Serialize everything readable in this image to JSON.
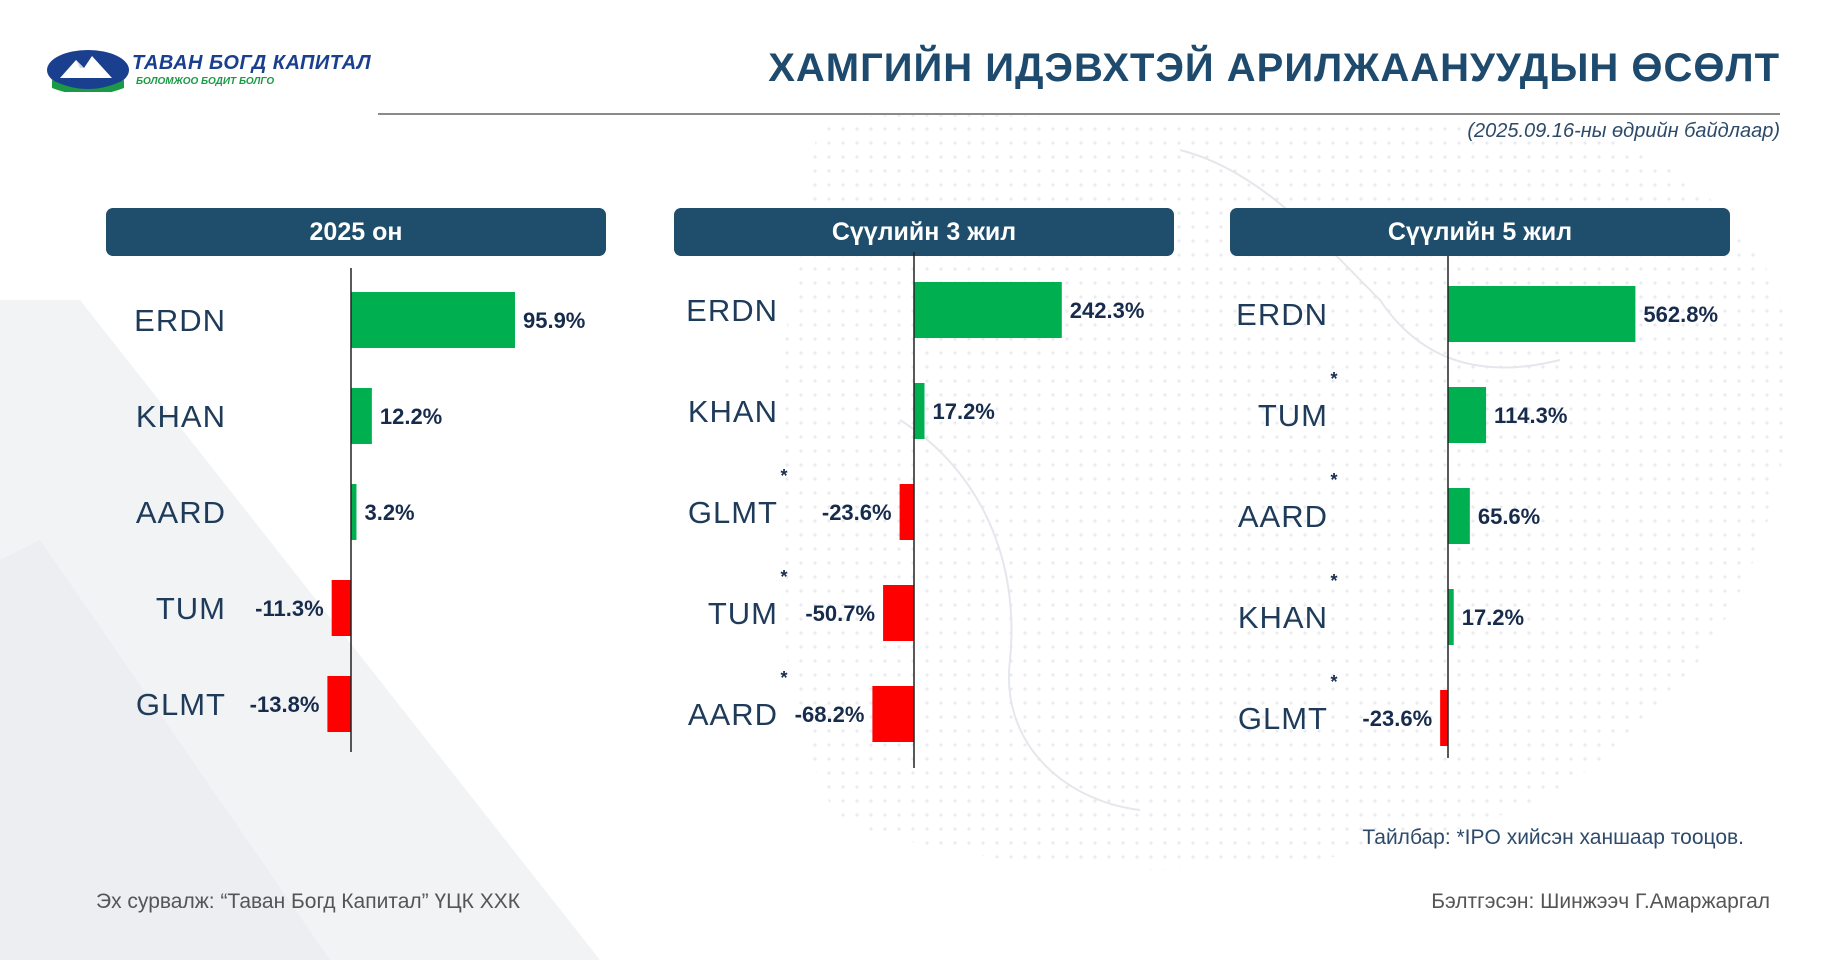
{
  "header": {
    "logo_name": "ТАВАН БОГД КАПИТАЛ",
    "logo_tagline": "БОЛОМЖОО БОДИТ БОЛГО",
    "title": "ХАМГИЙН ИДЭВХТЭЙ АРИЛЖААНУУДЫН ӨСӨЛТ",
    "subtitle": "(2025.09.16-ны өдрийн байдлаар)"
  },
  "colors": {
    "positive": "#00b050",
    "negative": "#ff0000",
    "header_bg": "#1f4d6c",
    "title": "#1e4a6e"
  },
  "chart_data": [
    {
      "type": "bar",
      "orientation": "horizontal",
      "title": "2025 он",
      "categories": [
        "ERDN",
        "KHAN",
        "AARD",
        "TUM",
        "GLMT"
      ],
      "values": [
        95.9,
        12.2,
        3.2,
        -11.3,
        -13.8
      ],
      "labels": [
        "95.9%",
        "12.2%",
        "3.2%",
        "-11.3%",
        "-13.8%"
      ],
      "ipo_marked": [
        false,
        false,
        false,
        false,
        false
      ],
      "xlim": [
        -50,
        200
      ]
    },
    {
      "type": "bar",
      "orientation": "horizontal",
      "title": "Сүүлийн 3 жил",
      "categories": [
        "ERDN",
        "KHAN",
        "GLMT",
        "TUM",
        "AARD"
      ],
      "values": [
        242.3,
        17.2,
        -23.6,
        -50.7,
        -68.2
      ],
      "labels": [
        "242.3%",
        "17.2%",
        "-23.6%",
        "-50.7%",
        "-68.2%"
      ],
      "ipo_marked": [
        false,
        false,
        true,
        true,
        true
      ],
      "xlim": [
        -130,
        260
      ]
    },
    {
      "type": "bar",
      "orientation": "horizontal",
      "title": "Сүүлийн 5 жил",
      "categories": [
        "ERDN",
        "TUM",
        "AARD",
        "KHAN",
        "GLMT"
      ],
      "values": [
        562.8,
        114.3,
        65.6,
        17.2,
        -23.6
      ],
      "labels": [
        "562.8%",
        "114.3%",
        "65.6%",
        "17.2%",
        "-23.6%"
      ],
      "ipo_marked": [
        false,
        true,
        true,
        true,
        true
      ],
      "xlim": [
        -250,
        600
      ]
    }
  ],
  "footer": {
    "note": "Тайлбар: *IPO хийсэн ханшаар тооцов.",
    "source": "Эх сурвалж: “Таван Богд Капитал” ҮЦК ХХК",
    "prepared_by": "Бэлтгэсэн: Шинжээч Г.Амаржаргал"
  }
}
